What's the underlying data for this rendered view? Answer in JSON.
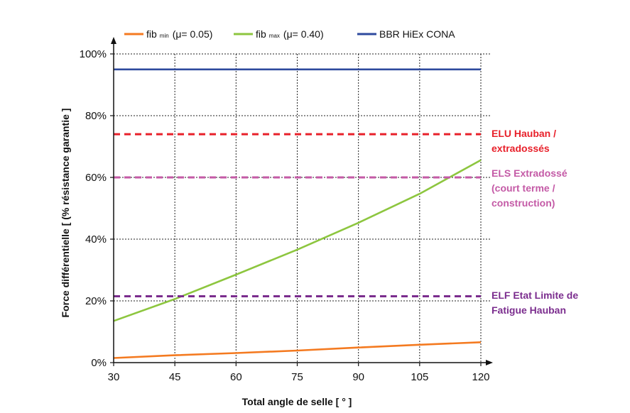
{
  "chart_data": {
    "type": "line",
    "title": "",
    "xlabel": "Total angle de selle   [ ° ]",
    "ylabel": "Force différentielle  [ (% résistance garantie ]",
    "xlim": [
      30,
      120
    ],
    "ylim": [
      0,
      100
    ],
    "x_ticks": [
      "30",
      "45",
      "60",
      "75",
      "90",
      "105",
      "120"
    ],
    "y_ticks": [
      "0%",
      "20%",
      "40%",
      "60%",
      "80%",
      "100%"
    ],
    "grid": true,
    "legend_position": "top",
    "legend": [
      {
        "main": "fib",
        "sub": "min",
        "rest": "(μ= 0.05)",
        "color": "#f47a20"
      },
      {
        "main": "fib",
        "sub": "max",
        "rest": "(μ= 0.40)",
        "color": "#8dc63f"
      },
      {
        "main": "BBR HiEx CONA",
        "sub": "",
        "rest": "",
        "color": "#2e4a9e"
      }
    ],
    "series": [
      {
        "name": "fib min (μ= 0.05)",
        "color": "#f47a20",
        "style": "solid",
        "x": [
          30,
          45,
          60,
          75,
          90,
          105,
          120
        ],
        "values": [
          1.5,
          2.4,
          3.1,
          3.9,
          4.9,
          5.8,
          6.6
        ]
      },
      {
        "name": "fib max (μ= 0.40)",
        "color": "#8dc63f",
        "style": "solid",
        "x": [
          30,
          45,
          60,
          75,
          90,
          105,
          120
        ],
        "values": [
          13.5,
          20.6,
          28.5,
          36.6,
          45.3,
          54.7,
          65.6
        ]
      },
      {
        "name": "BBR HiEx CONA",
        "color": "#2e4a9e",
        "style": "solid",
        "x": [
          30,
          120
        ],
        "values": [
          95,
          95
        ]
      },
      {
        "name": "ELU Hauban / extradossés",
        "color": "#e8202a",
        "style": "dashed",
        "x": [
          30,
          120
        ],
        "values": [
          74,
          74
        ]
      },
      {
        "name": "ELS Extradossé (court terme / construction)",
        "color": "#c45aa6",
        "style": "dashed",
        "x": [
          30,
          120
        ],
        "values": [
          60,
          60
        ]
      },
      {
        "name": "ELF Etat Limite de Fatigue Hauban",
        "color": "#7b2d8e",
        "style": "dashed",
        "x": [
          30,
          120
        ],
        "values": [
          21.5,
          21.5
        ]
      }
    ],
    "annotations": [
      {
        "lines": [
          "ELU Hauban /",
          "extradossés"
        ],
        "color": "#e8202a"
      },
      {
        "lines": [
          "ELS Extradossé",
          "(court terme /",
          " construction)"
        ],
        "color": "#c45aa6"
      },
      {
        "lines": [
          "ELF Etat Limite de",
          "Fatigue Hauban"
        ],
        "color": "#7b2d8e"
      }
    ]
  }
}
